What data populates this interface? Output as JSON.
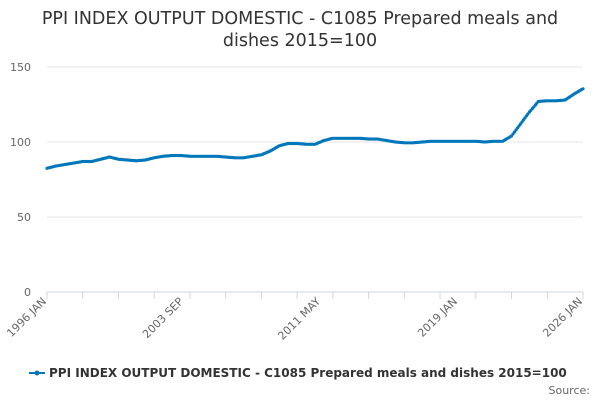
{
  "chart_data": {
    "type": "line",
    "title": "PPI INDEX OUTPUT DOMESTIC - C1085 Prepared meals and dishes 2015=100",
    "title_lines": [
      "PPI INDEX OUTPUT DOMESTIC - C1085 Prepared meals and",
      "dishes 2015=100"
    ],
    "xlabel": "",
    "ylabel": "",
    "x_range": [
      "1996 JAN",
      "2026 JAN"
    ],
    "ylim": [
      0,
      150
    ],
    "y_ticks": [
      0,
      50,
      100,
      150
    ],
    "x_ticks": [
      "1996 JAN",
      "2003 SEP",
      "2011 MAY",
      "2019 JAN",
      "2026 JAN"
    ],
    "grid": "horizontal",
    "legend_position": "bottom",
    "series": [
      {
        "name": "PPI INDEX OUTPUT DOMESTIC - C1085 Prepared meals and dishes 2015=100",
        "color": "#0077bb",
        "points": [
          [
            "1996-01",
            82.5
          ],
          [
            "1996-07",
            84
          ],
          [
            "1997-01",
            85
          ],
          [
            "1997-07",
            86
          ],
          [
            "1998-01",
            87
          ],
          [
            "1998-07",
            87
          ],
          [
            "1999-01",
            88.5
          ],
          [
            "1999-07",
            90
          ],
          [
            "2000-01",
            88.5
          ],
          [
            "2000-07",
            88
          ],
          [
            "2001-01",
            87.5
          ],
          [
            "2001-07",
            88
          ],
          [
            "2002-01",
            89.5
          ],
          [
            "2002-07",
            90.5
          ],
          [
            "2003-01",
            91
          ],
          [
            "2003-07",
            91
          ],
          [
            "2004-01",
            90.5
          ],
          [
            "2004-07",
            90.5
          ],
          [
            "2005-01",
            90.5
          ],
          [
            "2005-07",
            90.5
          ],
          [
            "2006-01",
            90
          ],
          [
            "2006-07",
            89.5
          ],
          [
            "2007-01",
            89.5
          ],
          [
            "2007-07",
            90.5
          ],
          [
            "2008-01",
            91.5
          ],
          [
            "2008-07",
            94
          ],
          [
            "2009-01",
            97.5
          ],
          [
            "2009-07",
            99
          ],
          [
            "2010-01",
            99
          ],
          [
            "2010-07",
            98.5
          ],
          [
            "2011-01",
            98.5
          ],
          [
            "2011-07",
            101
          ],
          [
            "2012-01",
            102.5
          ],
          [
            "2012-07",
            102.5
          ],
          [
            "2013-01",
            102.5
          ],
          [
            "2013-07",
            102.5
          ],
          [
            "2014-01",
            102
          ],
          [
            "2014-07",
            102
          ],
          [
            "2015-01",
            101
          ],
          [
            "2015-07",
            100
          ],
          [
            "2016-01",
            99.5
          ],
          [
            "2016-07",
            99.5
          ],
          [
            "2017-01",
            100
          ],
          [
            "2017-07",
            100.5
          ],
          [
            "2018-01",
            100.5
          ],
          [
            "2018-07",
            100.5
          ],
          [
            "2019-01",
            100.5
          ],
          [
            "2019-07",
            100.5
          ],
          [
            "2020-01",
            100.5
          ],
          [
            "2020-07",
            100
          ],
          [
            "2021-01",
            100.5
          ],
          [
            "2021-07",
            100.5
          ],
          [
            "2022-01",
            104
          ],
          [
            "2022-07",
            112
          ],
          [
            "2023-01",
            120
          ],
          [
            "2023-07",
            127
          ],
          [
            "2024-01",
            127.5
          ],
          [
            "2024-07",
            127.5
          ],
          [
            "2025-01",
            128
          ],
          [
            "2025-07",
            132
          ],
          [
            "2026-01",
            135.5
          ]
        ]
      }
    ]
  },
  "legend": {
    "label": "PPI INDEX OUTPUT DOMESTIC - C1085 Prepared meals and dishes 2015=100"
  },
  "credit": {
    "text": "Source:"
  }
}
